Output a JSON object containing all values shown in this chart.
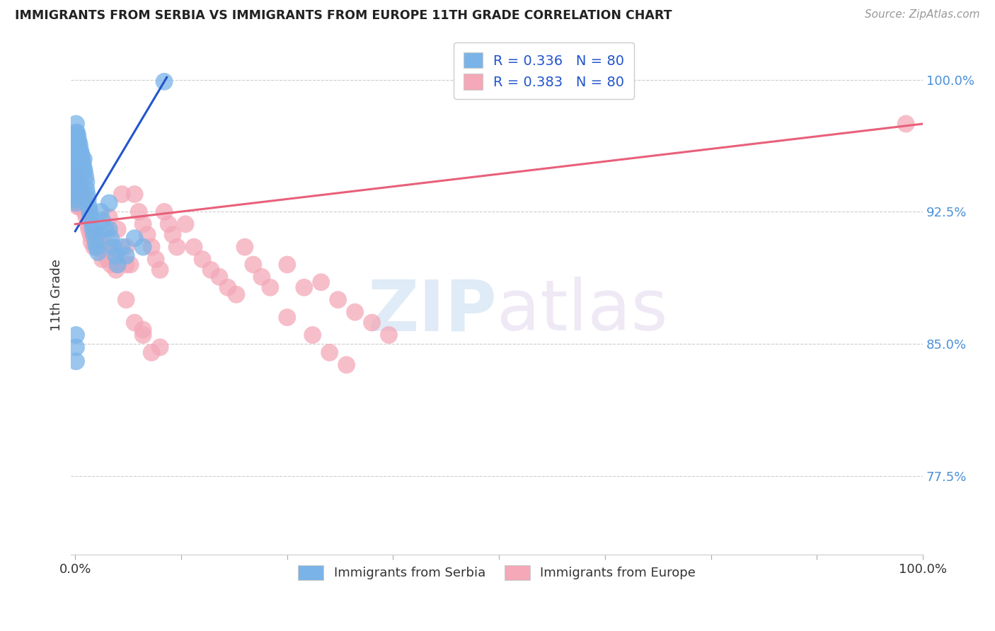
{
  "title": "IMMIGRANTS FROM SERBIA VS IMMIGRANTS FROM EUROPE 11TH GRADE CORRELATION CHART",
  "source": "Source: ZipAtlas.com",
  "ylabel": "11th Grade",
  "y_tick_labels": [
    "77.5%",
    "85.0%",
    "92.5%",
    "100.0%"
  ],
  "y_tick_values": [
    0.775,
    0.85,
    0.925,
    1.0
  ],
  "x_tick_values": [
    0.0,
    0.125,
    0.25,
    0.375,
    0.5,
    0.625,
    0.75,
    0.875,
    1.0
  ],
  "legend_label_serbia": "Immigrants from Serbia",
  "legend_label_europe": "Immigrants from Europe",
  "serbia_color": "#7ab3e8",
  "europe_color": "#f4a8b8",
  "serbia_line_color": "#2255cc",
  "europe_line_color": "#e8607a",
  "serbia_R": 0.336,
  "europe_R": 0.383,
  "N": 80,
  "serbia_x": [
    0.001,
    0.001,
    0.001,
    0.001,
    0.001,
    0.001,
    0.001,
    0.001,
    0.001,
    0.001,
    0.001,
    0.001,
    0.001,
    0.001,
    0.001,
    0.001,
    0.001,
    0.001,
    0.002,
    0.002,
    0.002,
    0.002,
    0.002,
    0.002,
    0.002,
    0.003,
    0.003,
    0.003,
    0.003,
    0.003,
    0.004,
    0.004,
    0.004,
    0.004,
    0.005,
    0.005,
    0.005,
    0.006,
    0.006,
    0.006,
    0.007,
    0.007,
    0.008,
    0.008,
    0.009,
    0.009,
    0.01,
    0.01,
    0.011,
    0.012,
    0.013,
    0.013,
    0.014,
    0.015,
    0.016,
    0.017,
    0.018,
    0.02,
    0.021,
    0.022,
    0.024,
    0.025,
    0.027,
    0.03,
    0.032,
    0.035,
    0.04,
    0.04,
    0.042,
    0.045,
    0.048,
    0.05,
    0.055,
    0.06,
    0.07,
    0.08,
    0.001,
    0.001,
    0.105,
    0.001
  ],
  "serbia_y": [
    0.965,
    0.96,
    0.955,
    0.95,
    0.945,
    0.94,
    0.935,
    0.93,
    0.975,
    0.97,
    0.968,
    0.962,
    0.958,
    0.952,
    0.948,
    0.942,
    0.938,
    0.932,
    0.97,
    0.965,
    0.96,
    0.955,
    0.95,
    0.945,
    0.94,
    0.968,
    0.963,
    0.958,
    0.953,
    0.948,
    0.965,
    0.96,
    0.955,
    0.95,
    0.963,
    0.958,
    0.953,
    0.96,
    0.955,
    0.95,
    0.958,
    0.952,
    0.955,
    0.95,
    0.952,
    0.947,
    0.955,
    0.95,
    0.948,
    0.945,
    0.942,
    0.938,
    0.935,
    0.932,
    0.928,
    0.925,
    0.922,
    0.918,
    0.915,
    0.912,
    0.908,
    0.905,
    0.902,
    0.925,
    0.92,
    0.915,
    0.93,
    0.915,
    0.91,
    0.905,
    0.9,
    0.895,
    0.905,
    0.9,
    0.91,
    0.905,
    0.855,
    0.848,
    0.999,
    0.84
  ],
  "europe_x": [
    0.001,
    0.001,
    0.002,
    0.002,
    0.003,
    0.003,
    0.004,
    0.005,
    0.005,
    0.006,
    0.007,
    0.008,
    0.009,
    0.01,
    0.011,
    0.012,
    0.013,
    0.015,
    0.016,
    0.018,
    0.019,
    0.02,
    0.022,
    0.025,
    0.028,
    0.03,
    0.032,
    0.035,
    0.038,
    0.04,
    0.042,
    0.045,
    0.048,
    0.05,
    0.055,
    0.06,
    0.065,
    0.07,
    0.075,
    0.08,
    0.085,
    0.09,
    0.095,
    0.1,
    0.105,
    0.11,
    0.115,
    0.12,
    0.13,
    0.14,
    0.15,
    0.16,
    0.17,
    0.18,
    0.19,
    0.2,
    0.21,
    0.22,
    0.23,
    0.25,
    0.27,
    0.29,
    0.31,
    0.33,
    0.35,
    0.37,
    0.04,
    0.05,
    0.06,
    0.25,
    0.06,
    0.07,
    0.08,
    0.08,
    0.09,
    0.1,
    0.28,
    0.3,
    0.32,
    0.98
  ],
  "europe_y": [
    0.948,
    0.935,
    0.945,
    0.932,
    0.942,
    0.928,
    0.938,
    0.942,
    0.928,
    0.938,
    0.932,
    0.935,
    0.928,
    0.932,
    0.925,
    0.928,
    0.922,
    0.918,
    0.915,
    0.912,
    0.908,
    0.915,
    0.905,
    0.912,
    0.905,
    0.912,
    0.898,
    0.905,
    0.898,
    0.905,
    0.895,
    0.9,
    0.892,
    0.895,
    0.935,
    0.905,
    0.895,
    0.935,
    0.925,
    0.918,
    0.912,
    0.905,
    0.898,
    0.892,
    0.925,
    0.918,
    0.912,
    0.905,
    0.918,
    0.905,
    0.898,
    0.892,
    0.888,
    0.882,
    0.878,
    0.905,
    0.895,
    0.888,
    0.882,
    0.895,
    0.882,
    0.885,
    0.875,
    0.868,
    0.862,
    0.855,
    0.922,
    0.915,
    0.895,
    0.865,
    0.875,
    0.862,
    0.855,
    0.858,
    0.845,
    0.848,
    0.855,
    0.845,
    0.838,
    0.975
  ],
  "ylim": [
    0.73,
    1.025
  ],
  "xlim": [
    -0.005,
    1.0
  ],
  "figsize": [
    14.06,
    8.92
  ],
  "dpi": 100
}
